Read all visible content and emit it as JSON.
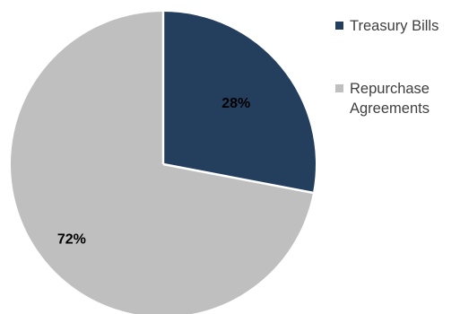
{
  "chart_data": {
    "type": "pie",
    "slices": [
      {
        "label": "Treasury Bills",
        "value": 28,
        "value_label": "28%",
        "color": "#243f5e"
      },
      {
        "label": "Repurchase Agreements",
        "value": 72,
        "value_label": "72%",
        "color": "#bfbfbf"
      }
    ],
    "legend": {
      "placement": "right",
      "items": [
        "Treasury Bills",
        "Repurchase Agreements"
      ]
    },
    "start_angle": "top, clockwise"
  }
}
